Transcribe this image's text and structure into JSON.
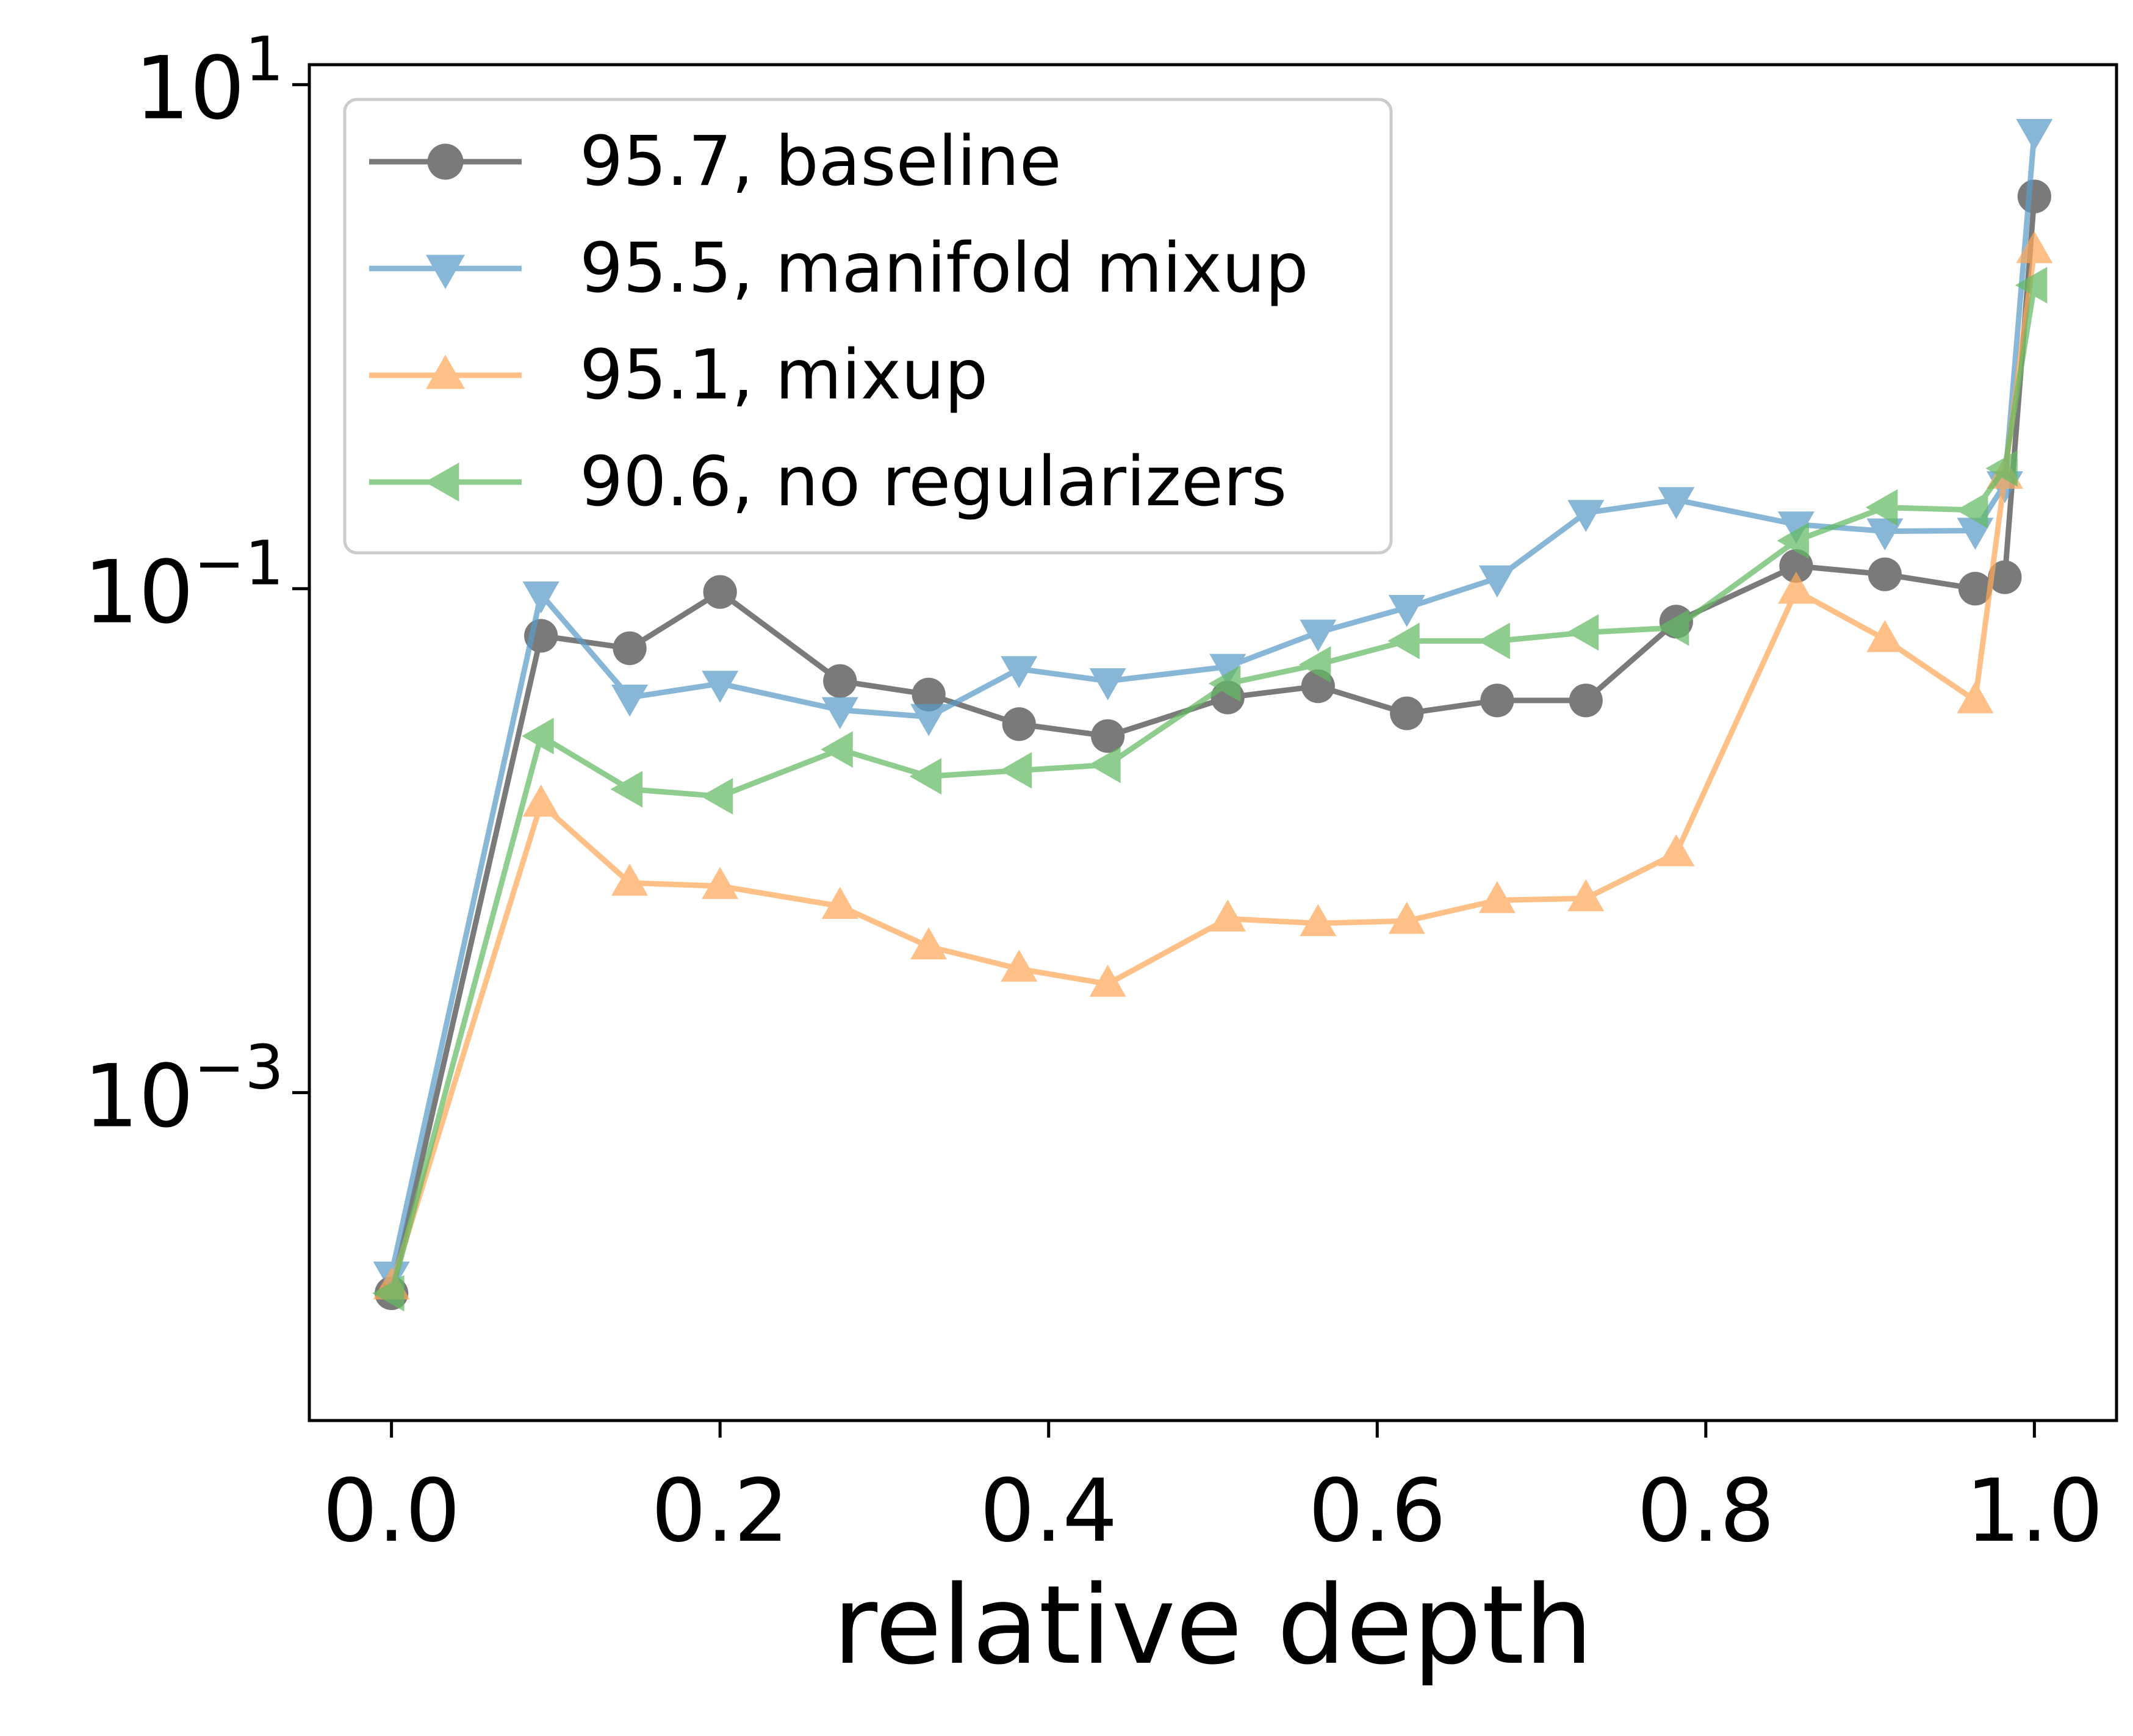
{
  "chart_data": {
    "type": "line",
    "title": "",
    "xlabel": "relative depth",
    "ylabel": "",
    "yscale": "log",
    "xlim": [
      -0.05,
      1.05
    ],
    "ylim": [
      5e-05,
      12
    ],
    "xticks": [
      0.0,
      0.2,
      0.4,
      0.6,
      0.8,
      1.0
    ],
    "xtick_labels": [
      "0.0",
      "0.2",
      "0.4",
      "0.6",
      "0.8",
      "1.0"
    ],
    "yticks": [
      {
        "value": 10,
        "base": "10",
        "exp": "1"
      },
      {
        "value": 0.1,
        "base": "10",
        "exp": "−1"
      },
      {
        "value": 0.001,
        "base": "10",
        "exp": "−3"
      }
    ],
    "grid": false,
    "legend_position": "top-left",
    "series": [
      {
        "name": "95.7, baseline",
        "color": "#595959",
        "marker": "circle",
        "x": [
          0.0,
          0.091,
          0.145,
          0.2,
          0.273,
          0.327,
          0.382,
          0.436,
          0.509,
          0.564,
          0.618,
          0.673,
          0.727,
          0.782,
          0.855,
          0.909,
          0.964,
          0.982,
          1.0
        ],
        "values": [
          0.00016,
          0.065,
          0.058,
          0.097,
          0.043,
          0.038,
          0.029,
          0.026,
          0.037,
          0.041,
          0.032,
          0.036,
          0.036,
          0.074,
          0.123,
          0.114,
          0.1,
          0.111,
          3.6
        ]
      },
      {
        "name": "95.5, manifold mixup",
        "color": "#5b9bc8",
        "marker": "triangle-down",
        "x": [
          0.0,
          0.091,
          0.145,
          0.2,
          0.273,
          0.327,
          0.382,
          0.436,
          0.509,
          0.564,
          0.618,
          0.673,
          0.727,
          0.782,
          0.855,
          0.909,
          0.964,
          0.982,
          1.0
        ],
        "values": [
          0.00019,
          0.095,
          0.037,
          0.042,
          0.033,
          0.031,
          0.048,
          0.043,
          0.049,
          0.067,
          0.084,
          0.11,
          0.2,
          0.225,
          0.18,
          0.169,
          0.17,
          0.26,
          6.5
        ]
      },
      {
        "name": "95.1, mixup",
        "color": "#ffa95a",
        "marker": "triangle-up",
        "x": [
          0.0,
          0.091,
          0.145,
          0.2,
          0.273,
          0.327,
          0.382,
          0.436,
          0.509,
          0.564,
          0.618,
          0.673,
          0.727,
          0.782,
          0.855,
          0.909,
          0.964,
          0.982,
          1.0
        ],
        "values": [
          0.00017,
          0.014,
          0.0068,
          0.0066,
          0.0055,
          0.0038,
          0.0031,
          0.0027,
          0.0049,
          0.0047,
          0.0048,
          0.0058,
          0.0059,
          0.0089,
          0.098,
          0.063,
          0.036,
          0.28,
          2.2
        ]
      },
      {
        "name": "90.6, no regularizers",
        "color": "#64bb64",
        "marker": "triangle-left",
        "x": [
          0.0,
          0.091,
          0.145,
          0.2,
          0.273,
          0.327,
          0.382,
          0.436,
          0.509,
          0.564,
          0.618,
          0.673,
          0.727,
          0.782,
          0.855,
          0.909,
          0.964,
          0.982,
          1.0
        ],
        "values": [
          0.00016,
          0.026,
          0.016,
          0.015,
          0.023,
          0.018,
          0.019,
          0.02,
          0.042,
          0.05,
          0.062,
          0.062,
          0.067,
          0.07,
          0.155,
          0.21,
          0.205,
          0.3,
          1.6
        ]
      }
    ]
  }
}
